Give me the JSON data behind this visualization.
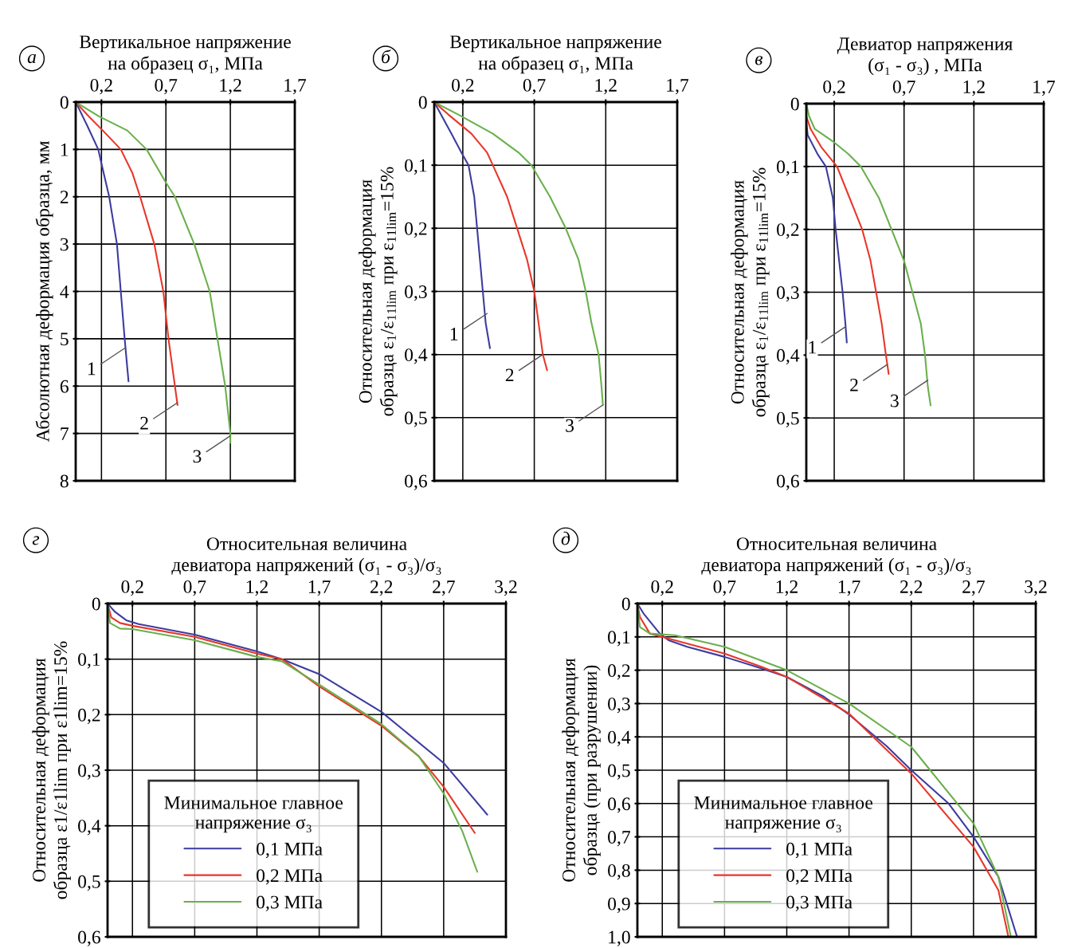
{
  "chart_data": [
    {
      "type": "line",
      "xlabel": "Вертикальное напряжение\nна образец σ₁, МПа",
      "ylabel": "Абсолютная деформация образца, мм",
      "xlim": [
        0,
        1.7
      ],
      "xticks": [
        {
          "value": 0.2,
          "label": "0,2"
        },
        {
          "value": 0.7,
          "label": "0,7"
        },
        {
          "value": 1.2,
          "label": "1,2"
        },
        {
          "value": 1.7,
          "label": "1,7"
        }
      ],
      "ylim": [
        8,
        0
      ],
      "yticks": [
        0,
        1,
        2,
        3,
        4,
        5,
        6,
        7,
        8
      ],
      "grid": true,
      "series": [
        {
          "color": "#3c3ca0",
          "x": [
            0,
            0.09,
            0.175,
            0.2,
            0.26,
            0.32,
            0.35,
            0.38,
            0.41
          ],
          "values": [
            0,
            0.5,
            1.0,
            1.3,
            2,
            3,
            4,
            5,
            5.9
          ]
        },
        {
          "color": "#e8372a",
          "x": [
            0,
            0.1,
            0.21,
            0.35,
            0.44,
            0.5,
            0.61,
            0.68,
            0.72,
            0.77,
            0.79
          ],
          "values": [
            0,
            0.3,
            0.6,
            1,
            1.5,
            2,
            3,
            4,
            5,
            6,
            6.4
          ]
        },
        {
          "color": "#6ab04c",
          "x": [
            0,
            0.18,
            0.4,
            0.55,
            0.7,
            0.77,
            0.92,
            1.04,
            1.1,
            1.16,
            1.2,
            1.2
          ],
          "values": [
            0,
            0.3,
            0.6,
            1,
            1.7,
            2,
            3,
            4,
            5,
            6,
            7,
            7.2
          ]
        }
      ],
      "annotations": [
        "а",
        {
          "text": "1",
          "x": 0.38,
          "y": 5.2
        },
        {
          "text": "2",
          "x": 0.79,
          "y": 6.35
        },
        {
          "text": "3",
          "x": 1.2,
          "y": 7.05
        }
      ]
    },
    {
      "type": "line",
      "xlabel": "Вертикальное напряжение\nна образец σ₁, МПа",
      "ylabel": "Относительная деформация\nобразца ε$_{1}$/ε$_{11lim}$ при ε$_{11lim}$=15%",
      "xlim": [
        0,
        1.7
      ],
      "xticks": [
        {
          "value": 0.2,
          "label": "0,2"
        },
        {
          "value": 0.7,
          "label": "0,7"
        },
        {
          "value": 1.2,
          "label": "1,2"
        },
        {
          "value": 1.7,
          "label": "1,7"
        }
      ],
      "ylim": [
        0.6,
        0
      ],
      "yticks": [
        0,
        {
          "value": 0.1,
          "label": "0,1"
        },
        {
          "value": 0.2,
          "label": "0,2"
        },
        {
          "value": 0.3,
          "label": "0,3"
        },
        {
          "value": 0.4,
          "label": "0,4"
        },
        {
          "value": 0.5,
          "label": "0,5"
        },
        {
          "value": 0.6,
          "label": "0,6"
        }
      ],
      "grid": true,
      "series": [
        {
          "color": "#3c3ca0",
          "x": [
            0,
            0.12,
            0.19,
            0.24,
            0.28,
            0.3,
            0.34,
            0.36,
            0.39
          ],
          "values": [
            0,
            0.05,
            0.08,
            0.1,
            0.15,
            0.2,
            0.3,
            0.35,
            0.39
          ]
        },
        {
          "color": "#e8372a",
          "x": [
            0,
            0.1,
            0.26,
            0.37,
            0.41,
            0.51,
            0.58,
            0.65,
            0.7,
            0.73,
            0.76,
            0.79
          ],
          "values": [
            0,
            0.02,
            0.05,
            0.08,
            0.1,
            0.15,
            0.2,
            0.25,
            0.3,
            0.35,
            0.4,
            0.425
          ]
        },
        {
          "color": "#6ab04c",
          "x": [
            0,
            0.17,
            0.41,
            0.59,
            0.68,
            0.81,
            0.92,
            1.01,
            1.06,
            1.1,
            1.15,
            1.17,
            1.18
          ],
          "values": [
            0,
            0.02,
            0.05,
            0.08,
            0.1,
            0.15,
            0.2,
            0.25,
            0.3,
            0.35,
            0.4,
            0.45,
            0.48
          ]
        }
      ],
      "annotations": [
        "б",
        {
          "text": "1",
          "x": 0.37,
          "y": 0.335
        },
        {
          "text": "2",
          "x": 0.76,
          "y": 0.4
        },
        {
          "text": "3",
          "x": 1.18,
          "y": 0.48
        }
      ]
    },
    {
      "type": "line",
      "xlabel": "Девиатор напряжения\n(σ₁ - σ₃) , МПа",
      "ylabel": "Относительная деформация\nобразца ε$_{1}$/ε$_{11lim}$ при ε$_{11lim}$=15%",
      "xlim": [
        0,
        1.7
      ],
      "xticks": [
        {
          "value": 0.2,
          "label": "0,2"
        },
        {
          "value": 0.7,
          "label": "0,7"
        },
        {
          "value": 1.2,
          "label": "1,2"
        },
        {
          "value": 1.7,
          "label": "1,7"
        }
      ],
      "ylim": [
        0.6,
        0
      ],
      "yticks": [
        0,
        {
          "value": 0.1,
          "label": "0,1"
        },
        {
          "value": 0.2,
          "label": "0,2"
        },
        {
          "value": 0.3,
          "label": "0,3"
        },
        {
          "value": 0.4,
          "label": "0,4"
        },
        {
          "value": 0.5,
          "label": "0,5"
        },
        {
          "value": 0.6,
          "label": "0,6"
        }
      ],
      "grid": true,
      "series": [
        {
          "color": "#3c3ca0",
          "x": [
            0,
            0,
            0.01,
            0.08,
            0.14,
            0.19,
            0.21,
            0.26,
            0.28,
            0.29
          ],
          "values": [
            0,
            0.03,
            0.05,
            0.08,
            0.1,
            0.15,
            0.2,
            0.3,
            0.35,
            0.38
          ]
        },
        {
          "color": "#e8372a",
          "x": [
            0,
            0,
            0.03,
            0.11,
            0.22,
            0.31,
            0.4,
            0.46,
            0.5,
            0.54,
            0.57,
            0.59
          ],
          "values": [
            0,
            0.02,
            0.04,
            0.07,
            0.1,
            0.15,
            0.2,
            0.25,
            0.3,
            0.35,
            0.4,
            0.43
          ]
        },
        {
          "color": "#6ab04c",
          "x": [
            0,
            0.02,
            0.06,
            0.19,
            0.3,
            0.39,
            0.52,
            0.61,
            0.7,
            0.76,
            0.82,
            0.85,
            0.87,
            0.89
          ],
          "values": [
            0,
            0.02,
            0.04,
            0.06,
            0.08,
            0.1,
            0.15,
            0.2,
            0.25,
            0.3,
            0.35,
            0.4,
            0.45,
            0.48
          ]
        }
      ],
      "annotations": [
        "в",
        {
          "text": "1",
          "x": 0.28,
          "y": 0.355
        },
        {
          "text": "2",
          "x": 0.58,
          "y": 0.415
        },
        {
          "text": "3",
          "x": 0.87,
          "y": 0.44
        }
      ]
    },
    {
      "type": "line",
      "xlabel": "Относительная величина\nдевиатора напряжений (σ₁ - σ₃)/σ₃",
      "ylabel": "Относительная деформация\nобразца ε1/ε1lim при ε1lim=15%",
      "xlim": [
        0,
        3.2
      ],
      "xticks": [
        {
          "value": 0.2,
          "label": "0,2"
        },
        {
          "value": 0.7,
          "label": "0,7"
        },
        {
          "value": 1.2,
          "label": "1,2"
        },
        {
          "value": 1.7,
          "label": "1,7"
        },
        {
          "value": 2.2,
          "label": "2,2"
        },
        {
          "value": 2.7,
          "label": "2,7"
        },
        {
          "value": 3.2,
          "label": "3,2"
        }
      ],
      "ylim": [
        0.6,
        0
      ],
      "yticks": [
        0,
        {
          "value": 0.1,
          "label": "0,1"
        },
        {
          "value": 0.2,
          "label": "0,2"
        },
        {
          "value": 0.3,
          "label": "0,3"
        },
        {
          "value": 0.4,
          "label": "0,4"
        },
        {
          "value": 0.5,
          "label": "0,5"
        },
        {
          "value": 0.6,
          "label": "0,6"
        }
      ],
      "grid": true,
      "legend": "bottom left",
      "legend_title": "Минимальное главное\nнапряжение σ₃",
      "series": [
        {
          "name": "0,1 МПа",
          "color": "#3c3ca0",
          "x": [
            0,
            0.06,
            0.15,
            0.25,
            0.7,
            1.2,
            1.4,
            1.7,
            2.2,
            2.7,
            3.05
          ],
          "values": [
            0,
            0.015,
            0.03,
            0.037,
            0.056,
            0.086,
            0.1,
            0.127,
            0.195,
            0.287,
            0.38
          ]
        },
        {
          "name": "0,2 МПа",
          "color": "#e8372a",
          "x": [
            0,
            0.03,
            0.1,
            0.2,
            0.7,
            1.2,
            1.4,
            1.7,
            2.2,
            2.5,
            2.7,
            2.95
          ],
          "values": [
            0,
            0.025,
            0.035,
            0.04,
            0.06,
            0.09,
            0.1,
            0.149,
            0.22,
            0.275,
            0.33,
            0.413
          ]
        },
        {
          "name": "0,3 МПа",
          "color": "#6ab04c",
          "x": [
            0,
            0.02,
            0.1,
            0.2,
            0.7,
            1.2,
            1.4,
            1.7,
            2.2,
            2.5,
            2.7,
            2.85,
            2.97
          ],
          "values": [
            0,
            0.035,
            0.045,
            0.046,
            0.066,
            0.096,
            0.104,
            0.146,
            0.217,
            0.275,
            0.342,
            0.41,
            0.483
          ]
        }
      ],
      "annotations": [
        "г"
      ]
    },
    {
      "type": "line",
      "xlabel": "Относительная величина\nдевиатора напряжений (σ₁ - σ₃)/σ₃",
      "ylabel": "Относительная деформация\nобразца (при разрушении)",
      "xlim": [
        0,
        3.2
      ],
      "xticks": [
        {
          "value": 0.2,
          "label": "0,2"
        },
        {
          "value": 0.7,
          "label": "0,7"
        },
        {
          "value": 1.2,
          "label": "1,2"
        },
        {
          "value": 1.7,
          "label": "1,7"
        },
        {
          "value": 2.2,
          "label": "2,2"
        },
        {
          "value": 2.7,
          "label": "2,7"
        },
        {
          "value": 3.2,
          "label": "3,2"
        }
      ],
      "ylim": [
        1.0,
        0
      ],
      "yticks": [
        0,
        {
          "value": 0.1,
          "label": "0,1"
        },
        {
          "value": 0.2,
          "label": "0,2"
        },
        {
          "value": 0.3,
          "label": "0,3"
        },
        {
          "value": 0.4,
          "label": "0,4"
        },
        {
          "value": 0.5,
          "label": "0,5"
        },
        {
          "value": 0.6,
          "label": "0,6"
        },
        {
          "value": 0.7,
          "label": "0,7"
        },
        {
          "value": 0.8,
          "label": "0,8"
        },
        {
          "value": 0.9,
          "label": "0,9"
        },
        {
          "value": 1.0,
          "label": "1,0"
        }
      ],
      "grid": true,
      "legend": "bottom left",
      "legend_title": "Минимальное главное\nнапряжение σ₃",
      "series": [
        {
          "name": "0,1 МПа",
          "color": "#3c3ca0",
          "x": [
            0,
            0.05,
            0.18,
            0.25,
            0.4,
            0.7,
            1.0,
            1.2,
            1.5,
            1.7,
            2.0,
            2.2,
            2.5,
            2.7,
            2.9,
            3.05
          ],
          "values": [
            0,
            0.03,
            0.09,
            0.11,
            0.13,
            0.16,
            0.195,
            0.22,
            0.28,
            0.333,
            0.427,
            0.5,
            0.6,
            0.7,
            0.82,
            1.0
          ]
        },
        {
          "name": "0,2 МПа",
          "color": "#e8372a",
          "x": [
            0,
            0.02,
            0.1,
            0.3,
            0.7,
            1.0,
            1.2,
            1.7,
            2.2,
            2.7,
            2.9,
            2.98
          ],
          "values": [
            0,
            0.04,
            0.09,
            0.11,
            0.15,
            0.19,
            0.22,
            0.33,
            0.51,
            0.73,
            0.86,
            1.0
          ]
        },
        {
          "name": "0,3 МПа",
          "color": "#6ab04c",
          "x": [
            0,
            0.02,
            0.1,
            0.3,
            0.7,
            1.2,
            1.7,
            2.2,
            2.7,
            2.9,
            3.0
          ],
          "values": [
            0,
            0.07,
            0.09,
            0.095,
            0.13,
            0.2,
            0.3,
            0.43,
            0.66,
            0.82,
            1.0
          ]
        }
      ],
      "annotations": [
        "д"
      ]
    }
  ]
}
